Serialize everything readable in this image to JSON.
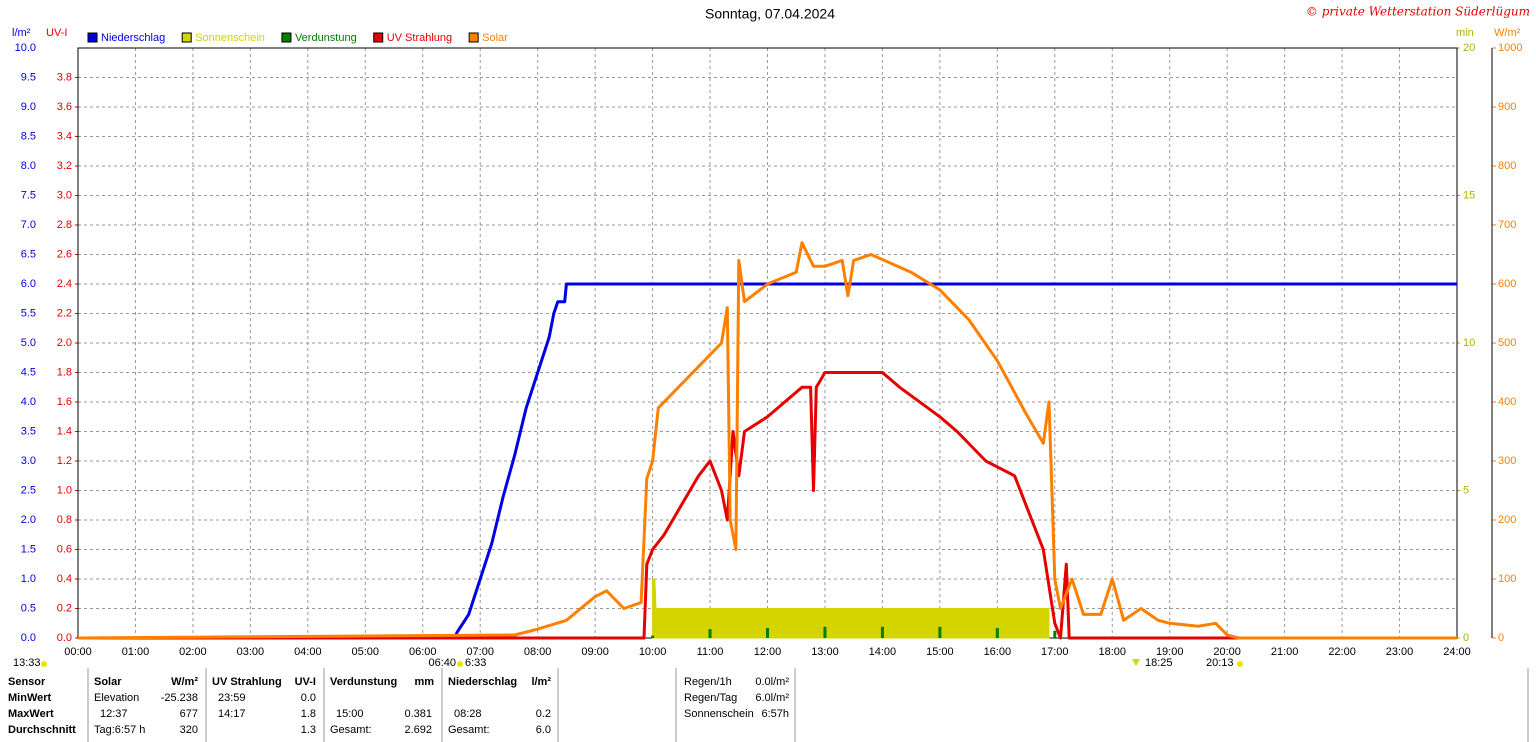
{
  "chart_data": {
    "type": "line",
    "title": "Sonntag, 07.04.2024",
    "credit": "© private Wetterstation Süderlügum",
    "y_label": "l/m²",
    "y2_label": "UV-I",
    "y3_label": "min",
    "y4_label": "W/m²",
    "xlim": [
      0,
      24
    ],
    "xticks": [
      {
        "value": 0,
        "label": "00:00"
      },
      {
        "value": 1,
        "label": "01:00"
      },
      {
        "value": 2,
        "label": "02:00"
      },
      {
        "value": 3,
        "label": "03:00"
      },
      {
        "value": 4,
        "label": "04:00"
      },
      {
        "value": 5,
        "label": "05:00"
      },
      {
        "value": 6,
        "label": "06:00"
      },
      {
        "value": 7,
        "label": "07:00"
      },
      {
        "value": 8,
        "label": "08:00"
      },
      {
        "value": 9,
        "label": "09:00"
      },
      {
        "value": 10,
        "label": "10:00"
      },
      {
        "value": 11,
        "label": "11:00"
      },
      {
        "value": 12,
        "label": "12:00"
      },
      {
        "value": 13,
        "label": "13:00"
      },
      {
        "value": 14,
        "label": "14:00"
      },
      {
        "value": 15,
        "label": "15:00"
      },
      {
        "value": 16,
        "label": "16:00"
      },
      {
        "value": 17,
        "label": "17:00"
      },
      {
        "value": 18,
        "label": "18:00"
      },
      {
        "value": 19,
        "label": "19:00"
      },
      {
        "value": 20,
        "label": "20:00"
      },
      {
        "value": 21,
        "label": "21:00"
      },
      {
        "value": 22,
        "label": "22:00"
      },
      {
        "value": 23,
        "label": "23:00"
      },
      {
        "value": 24,
        "label": "24:00"
      }
    ],
    "ylim": [
      0,
      10
    ],
    "yticks": [
      {
        "value": 0,
        "label": "0.0"
      },
      0.5,
      {
        "value": 1,
        "label": "1.0"
      },
      1.5,
      {
        "value": 2,
        "label": "2.0"
      },
      2.5,
      {
        "value": 3,
        "label": "3.0"
      },
      3.5,
      {
        "value": 4,
        "label": "4.0"
      },
      4.5,
      {
        "value": 5,
        "label": "5.0"
      },
      5.5,
      {
        "value": 6,
        "label": "6.0"
      },
      6.5,
      {
        "value": 7,
        "label": "7.0"
      },
      7.5,
      {
        "value": 8,
        "label": "8.0"
      },
      8.5,
      {
        "value": 9,
        "label": "9.0"
      },
      9.5,
      {
        "value": 10,
        "label": "10.0"
      }
    ],
    "y2lim": [
      0,
      4
    ],
    "y2ticks": [
      {
        "value": 0,
        "label": "0.0"
      },
      0.2,
      0.4,
      0.6,
      0.8,
      {
        "value": 1,
        "label": "1.0"
      },
      1.2,
      1.4,
      1.6,
      1.8,
      {
        "value": 2,
        "label": "2.0"
      },
      2.2,
      2.4,
      2.6,
      2.8,
      {
        "value": 3,
        "label": "3.0"
      },
      3.2,
      3.4,
      3.6,
      3.8
    ],
    "y3lim": [
      0,
      20
    ],
    "y3ticks": [
      0,
      5,
      10,
      15,
      20
    ],
    "y4lim": [
      0,
      1000
    ],
    "y4ticks": [
      0,
      100,
      200,
      300,
      400,
      500,
      600,
      700,
      800,
      900,
      1000
    ],
    "grid": true,
    "series": [
      {
        "name": "Niederschlag",
        "color": "#0000e6",
        "axis": "y",
        "type": "line",
        "x": [
          0,
          6.55,
          6.6,
          6.8,
          7.0,
          7.2,
          7.4,
          7.6,
          7.8,
          8.0,
          8.2,
          8.28,
          8.35,
          8.47,
          8.5,
          24
        ],
        "values": [
          0,
          0,
          0.1,
          0.4,
          1.0,
          1.6,
          2.4,
          3.1,
          3.9,
          4.5,
          5.1,
          5.5,
          5.7,
          5.7,
          6.0,
          6.0
        ]
      },
      {
        "name": "Sonnenschein",
        "color": "#d4d400",
        "axis": "y3",
        "type": "area",
        "x": [
          10.0,
          10.04,
          10.06,
          16.9
        ],
        "values": [
          2,
          2,
          1,
          1
        ]
      },
      {
        "name": "Verdunstung",
        "color": "#008000",
        "axis": "y",
        "type": "bar",
        "x": [
          10,
          11,
          12,
          13,
          14,
          15,
          16,
          17
        ],
        "values": [
          0.04,
          0.15,
          0.17,
          0.19,
          0.19,
          0.19,
          0.17,
          0.12
        ]
      },
      {
        "name": "UV Strahlung",
        "color": "#e60000",
        "axis": "y2",
        "type": "line",
        "x": [
          0,
          9.85,
          9.9,
          10.0,
          10.2,
          10.5,
          10.8,
          11.0,
          11.2,
          11.3,
          11.4,
          11.5,
          11.6,
          12.0,
          12.3,
          12.6,
          12.75,
          12.8,
          12.85,
          13.0,
          14.0,
          14.3,
          15.0,
          15.3,
          15.8,
          16.3,
          16.6,
          16.8,
          17.0,
          17.1,
          17.2,
          17.25,
          24
        ],
        "values": [
          0,
          0,
          0.5,
          0.6,
          0.7,
          0.9,
          1.1,
          1.2,
          1.0,
          0.8,
          1.4,
          1.1,
          1.4,
          1.5,
          1.6,
          1.7,
          1.7,
          1.0,
          1.7,
          1.8,
          1.8,
          1.7,
          1.5,
          1.4,
          1.2,
          1.1,
          0.8,
          0.6,
          0.1,
          0.0,
          0.5,
          0,
          0
        ]
      },
      {
        "name": "Solar",
        "color": "#ff8000",
        "axis": "y4",
        "type": "line",
        "x": [
          0,
          7.6,
          8.0,
          8.5,
          9.0,
          9.2,
          9.5,
          9.8,
          9.9,
          10.0,
          10.1,
          10.5,
          10.8,
          11.0,
          11.2,
          11.3,
          11.35,
          11.45,
          11.5,
          11.6,
          12.0,
          12.5,
          12.6,
          12.8,
          13.0,
          13.3,
          13.4,
          13.5,
          13.8,
          14.5,
          15.0,
          15.5,
          16.0,
          16.5,
          16.8,
          16.9,
          17.0,
          17.1,
          17.3,
          17.5,
          17.8,
          18.0,
          18.2,
          18.5,
          18.8,
          19.0,
          19.5,
          19.8,
          20.0,
          20.2,
          24
        ],
        "values": [
          0,
          5,
          15,
          30,
          70,
          80,
          50,
          60,
          270,
          300,
          390,
          430,
          460,
          480,
          500,
          560,
          200,
          150,
          640,
          570,
          600,
          620,
          670,
          630,
          630,
          640,
          580,
          640,
          650,
          620,
          590,
          540,
          470,
          380,
          330,
          400,
          100,
          50,
          100,
          40,
          40,
          100,
          30,
          50,
          30,
          25,
          20,
          25,
          5,
          0,
          0
        ]
      }
    ],
    "annotations": [
      "13:33",
      "06:40",
      "6:33",
      "18:25",
      "20:13"
    ]
  },
  "table": {
    "header": [
      "Sensor",
      "Solar",
      "W/m²",
      "UV Strahlung",
      "UV-I",
      "Verdunstung",
      "mm",
      "Niederschlag",
      "l/m²"
    ],
    "rows": [
      [
        "MinWert",
        "Elevation",
        "-25.238",
        "23:59",
        "0.0",
        null,
        null,
        null,
        null
      ],
      [
        "MaxWert",
        "12:37",
        "677",
        "14:17",
        "1.8",
        "15:00",
        "0.381",
        "08:28",
        "0.2"
      ],
      [
        "Durchschnitt",
        "Tag:6:57 h",
        "320",
        null,
        "1.3",
        "Gesamt:",
        "2.692",
        "Gesamt:",
        "6.0"
      ]
    ]
  },
  "summary": [
    [
      "Regen/1h",
      "0.0l/m²"
    ],
    [
      "Regen/Tag",
      "6.0l/m²"
    ],
    [
      "Sonnenschein",
      "6:57h"
    ]
  ]
}
